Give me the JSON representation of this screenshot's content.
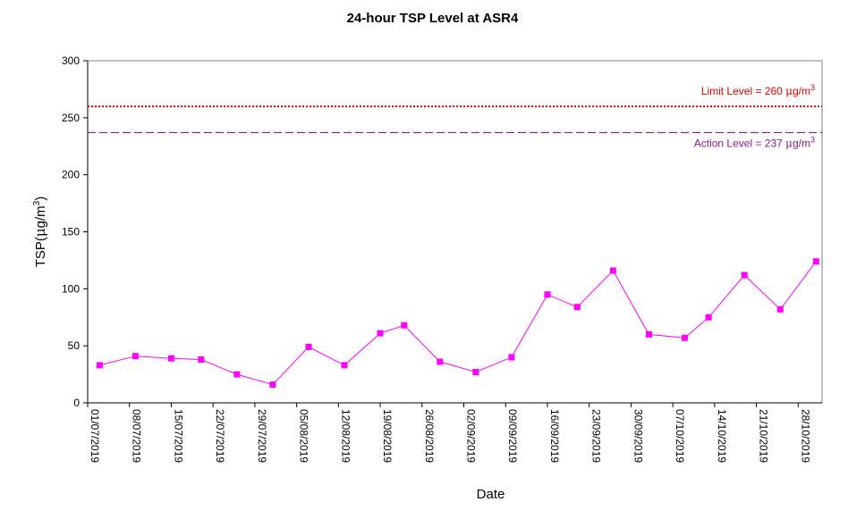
{
  "chart_data": {
    "type": "line",
    "title": "24-hour TSP Level at ASR4",
    "xlabel": "Date",
    "ylabel_main": "TSP(",
    "ylabel_unit_mu": "μ",
    "ylabel_unit_rest": "g/m",
    "ylabel_sup": "3",
    "ylabel_close": ")",
    "ylim": [
      0,
      300
    ],
    "yticks": [
      0,
      50,
      100,
      150,
      200,
      250,
      300
    ],
    "xlim": [
      "2019-07-01",
      "2019-11-01"
    ],
    "xtick_labels": [
      "01/07/2019",
      "08/07/2019",
      "15/07/2019",
      "22/07/2019",
      "29/07/2019",
      "05/08/2019",
      "12/08/2019",
      "19/08/2019",
      "26/08/2019",
      "02/09/2019",
      "09/09/2019",
      "16/09/2019",
      "23/09/2019",
      "30/09/2019",
      "07/10/2019",
      "14/10/2019",
      "21/10/2019",
      "28/10/2019"
    ],
    "series": [
      {
        "color": "#ff00ff",
        "x": [
          "2019-07-03",
          "2019-07-09",
          "2019-07-15",
          "2019-07-20",
          "2019-07-26",
          "2019-08-01",
          "2019-08-07",
          "2019-08-13",
          "2019-08-19",
          "2019-08-23",
          "2019-08-29",
          "2019-09-04",
          "2019-09-10",
          "2019-09-16",
          "2019-09-21",
          "2019-09-27",
          "2019-10-03",
          "2019-10-09",
          "2019-10-13",
          "2019-10-19",
          "2019-10-25",
          "2019-10-31"
        ],
        "values": [
          33,
          41,
          39,
          38,
          25,
          16,
          49,
          33,
          61,
          68,
          36,
          27,
          40,
          95,
          84,
          116,
          60,
          57,
          75,
          112,
          82,
          124
        ]
      }
    ],
    "reference_lines": [
      {
        "label": "Limit Level  = 260 ",
        "label_mu": "μ",
        "label_unit": "g/m",
        "label_sup": "3",
        "value": 260,
        "color": "#e00000",
        "style": "dotted"
      },
      {
        "label": "Action Level  = 237 ",
        "label_mu": "μ",
        "label_unit": "g/m",
        "label_sup": "3",
        "value": 237,
        "color": "#8b1a8b",
        "style": "dashed"
      }
    ],
    "grid": false,
    "legend": "none"
  }
}
